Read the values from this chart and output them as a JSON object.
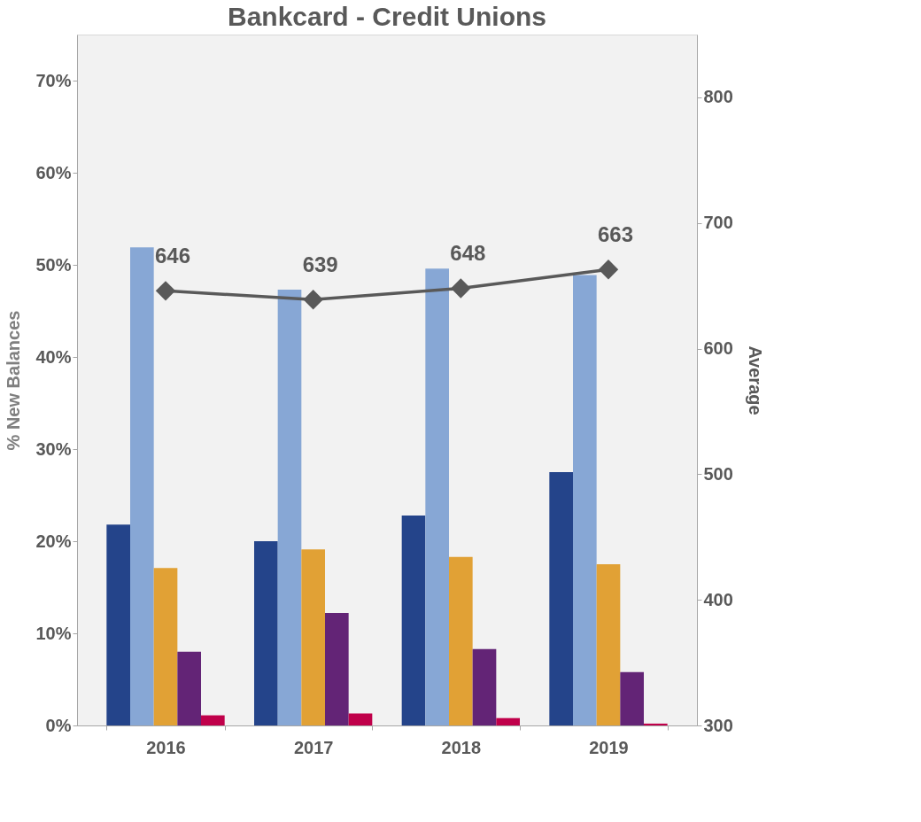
{
  "chart_data": {
    "type": "bar",
    "title": "Bankcard - Credit Unions",
    "ylabel": "% New Balances",
    "y2label": "Average",
    "categories": [
      "2016",
      "2017",
      "2018",
      "2019"
    ],
    "series": [
      {
        "color": "#24448a",
        "values": [
          21.8,
          20.0,
          22.8,
          27.5
        ]
      },
      {
        "color": "#87a7d5",
        "values": [
          51.9,
          47.3,
          49.6,
          48.9
        ]
      },
      {
        "color": "#e1a135",
        "values": [
          17.1,
          19.1,
          18.3,
          17.5
        ]
      },
      {
        "color": "#632476",
        "values": [
          8.0,
          12.2,
          8.3,
          5.8
        ]
      },
      {
        "color": "#c0004a",
        "values": [
          1.1,
          1.3,
          0.8,
          0.2
        ]
      },
      {
        "type": "line",
        "axis": "y2",
        "color": "#595959",
        "marker": "diamond",
        "values": [
          646,
          639,
          648,
          663
        ],
        "value_labels": [
          "646",
          "639",
          "648",
          "663"
        ]
      }
    ],
    "ylim": [
      0,
      75
    ],
    "yticks": [
      {
        "value": 0,
        "label": "0%"
      },
      {
        "value": 10,
        "label": "10%"
      },
      {
        "value": 20,
        "label": "20%"
      },
      {
        "value": 30,
        "label": "30%"
      },
      {
        "value": 40,
        "label": "40%"
      },
      {
        "value": 50,
        "label": "50%"
      },
      {
        "value": 60,
        "label": "60%"
      },
      {
        "value": 70,
        "label": "70%"
      }
    ],
    "y2lim": [
      300,
      850
    ],
    "y2ticks": [
      300,
      400,
      500,
      600,
      700,
      800
    ],
    "grid": false
  }
}
